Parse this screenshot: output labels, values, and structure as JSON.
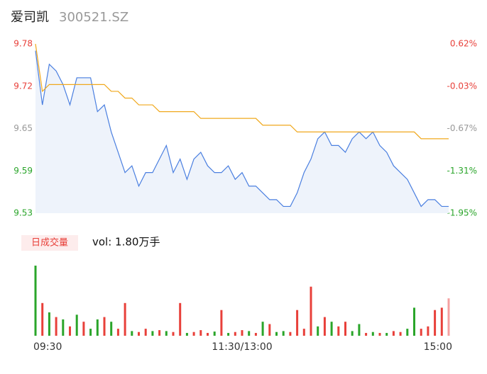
{
  "header": {
    "name": "爱司凯",
    "code": "300521.SZ"
  },
  "chart_data": [
    {
      "type": "line",
      "x": [
        0,
        4,
        8,
        12,
        16,
        20,
        24,
        28,
        32,
        36,
        40,
        44,
        48,
        52,
        56,
        60,
        64,
        68,
        72,
        76,
        80,
        84,
        88,
        92,
        96,
        100,
        104,
        108,
        112,
        116,
        120,
        124,
        128,
        132,
        136,
        140,
        144,
        148,
        152,
        156,
        160,
        164,
        168,
        172,
        176,
        180,
        184,
        188,
        192,
        196,
        200,
        204,
        208,
        212,
        216,
        220,
        224,
        228,
        232,
        236,
        240
      ],
      "xlim": [
        0,
        240
      ],
      "series": [
        {
          "color": "#4a7fe0",
          "fill": "#eef3fb",
          "values": [
            9.77,
            9.69,
            9.75,
            9.74,
            9.72,
            9.69,
            9.73,
            9.73,
            9.73,
            9.68,
            9.69,
            9.65,
            9.62,
            9.59,
            9.6,
            9.57,
            9.59,
            9.59,
            9.61,
            9.63,
            9.59,
            9.61,
            9.58,
            9.61,
            9.62,
            9.6,
            9.59,
            9.59,
            9.6,
            9.58,
            9.59,
            9.57,
            9.57,
            9.56,
            9.55,
            9.55,
            9.54,
            9.54,
            9.56,
            9.59,
            9.61,
            9.64,
            9.65,
            9.63,
            9.63,
            9.62,
            9.64,
            9.65,
            9.64,
            9.65,
            9.63,
            9.62,
            9.6,
            9.59,
            9.58,
            9.56,
            9.54,
            9.55,
            9.55,
            9.54,
            9.54
          ]
        },
        {
          "color": "#f0a81c",
          "values": [
            9.78,
            9.71,
            9.72,
            9.72,
            9.72,
            9.72,
            9.72,
            9.72,
            9.72,
            9.72,
            9.72,
            9.71,
            9.71,
            9.7,
            9.7,
            9.69,
            9.69,
            9.69,
            9.68,
            9.68,
            9.68,
            9.68,
            9.68,
            9.68,
            9.67,
            9.67,
            9.67,
            9.67,
            9.67,
            9.67,
            9.67,
            9.67,
            9.67,
            9.66,
            9.66,
            9.66,
            9.66,
            9.66,
            9.65,
            9.65,
            9.65,
            9.65,
            9.65,
            9.65,
            9.65,
            9.65,
            9.65,
            9.65,
            9.65,
            9.65,
            9.65,
            9.65,
            9.65,
            9.65,
            9.65,
            9.65,
            9.64,
            9.64,
            9.64,
            9.64,
            9.64
          ]
        }
      ],
      "ylim": [
        9.53,
        9.78
      ],
      "yticks": [
        {
          "value": 9.78,
          "label": "9.78"
        },
        {
          "value": 9.7175,
          "label": "9.72"
        },
        {
          "value": 9.655,
          "label": "9.65"
        },
        {
          "value": 9.5925,
          "label": "9.59"
        },
        {
          "value": 9.53,
          "label": "9.53"
        }
      ],
      "ytick_colors": [
        "#e8403a",
        "#e8403a",
        "#999999",
        "#2aa52a",
        "#2aa52a"
      ],
      "y2lim": [
        -1.95,
        0.62
      ],
      "y2ticks": [
        {
          "value": 0.62,
          "label": "0.62%"
        },
        {
          "value": -0.0225,
          "label": "-0.03%"
        },
        {
          "value": -0.665,
          "label": "-0.67%"
        },
        {
          "value": -1.3075,
          "label": "-1.31%"
        },
        {
          "value": -1.95,
          "label": "-1.95%"
        }
      ],
      "y2tick_colors": [
        "#e8403a",
        "#e8403a",
        "#999999",
        "#2aa52a",
        "#2aa52a"
      ]
    },
    {
      "type": "bar",
      "label": "日成交量",
      "summary": "vol: 1.80万手",
      "x": [
        0,
        4,
        8,
        12,
        16,
        20,
        24,
        28,
        32,
        36,
        40,
        44,
        48,
        52,
        56,
        60,
        64,
        68,
        72,
        76,
        80,
        84,
        88,
        92,
        96,
        100,
        104,
        108,
        112,
        116,
        120,
        124,
        128,
        132,
        136,
        140,
        144,
        148,
        152,
        156,
        160,
        164,
        168,
        172,
        176,
        180,
        184,
        188,
        192,
        196,
        200,
        204,
        208,
        212,
        216,
        220,
        224,
        228,
        232,
        236,
        240
      ],
      "xlim": [
        0,
        240
      ],
      "xticks": [
        {
          "value": 0,
          "label": "09:30"
        },
        {
          "value": 120,
          "label": "11:30/13:00"
        },
        {
          "value": 240,
          "label": "15:00"
        }
      ],
      "values": [
        1500,
        700,
        500,
        400,
        350,
        200,
        450,
        300,
        150,
        350,
        400,
        300,
        150,
        700,
        100,
        80,
        150,
        100,
        120,
        100,
        80,
        700,
        60,
        80,
        120,
        60,
        90,
        550,
        60,
        80,
        120,
        100,
        60,
        300,
        250,
        80,
        100,
        80,
        550,
        150,
        1050,
        200,
        400,
        300,
        200,
        300,
        100,
        250,
        60,
        80,
        60,
        60,
        100,
        80,
        150,
        600,
        150,
        200,
        550,
        600,
        800
      ],
      "colors": [
        "#2aa52a",
        "#e8403a",
        "#2aa52a",
        "#e8403a",
        "#2aa52a",
        "#e8403a",
        "#2aa52a",
        "#e8403a",
        "#2aa52a",
        "#2aa52a",
        "#e8403a",
        "#2aa52a",
        "#e8403a",
        "#e8403a",
        "#2aa52a",
        "#e8403a",
        "#e8403a",
        "#2aa52a",
        "#e8403a",
        "#2aa52a",
        "#e8403a",
        "#e8403a",
        "#2aa52a",
        "#e8403a",
        "#e8403a",
        "#e8403a",
        "#2aa52a",
        "#e8403a",
        "#2aa52a",
        "#e8403a",
        "#e8403a",
        "#2aa52a",
        "#e8403a",
        "#2aa52a",
        "#e8403a",
        "#2aa52a",
        "#2aa52a",
        "#e8403a",
        "#e8403a",
        "#e8403a",
        "#e8403a",
        "#2aa52a",
        "#e8403a",
        "#2aa52a",
        "#e8403a",
        "#e8403a",
        "#2aa52a",
        "#2aa52a",
        "#e8403a",
        "#2aa52a",
        "#e8403a",
        "#2aa52a",
        "#e8403a",
        "#e8403a",
        "#2aa52a",
        "#2aa52a",
        "#e8403a",
        "#e8403a",
        "#e8403a",
        "#e8403a",
        "#f4a0a0"
      ],
      "ylim": [
        0,
        1500
      ]
    }
  ]
}
